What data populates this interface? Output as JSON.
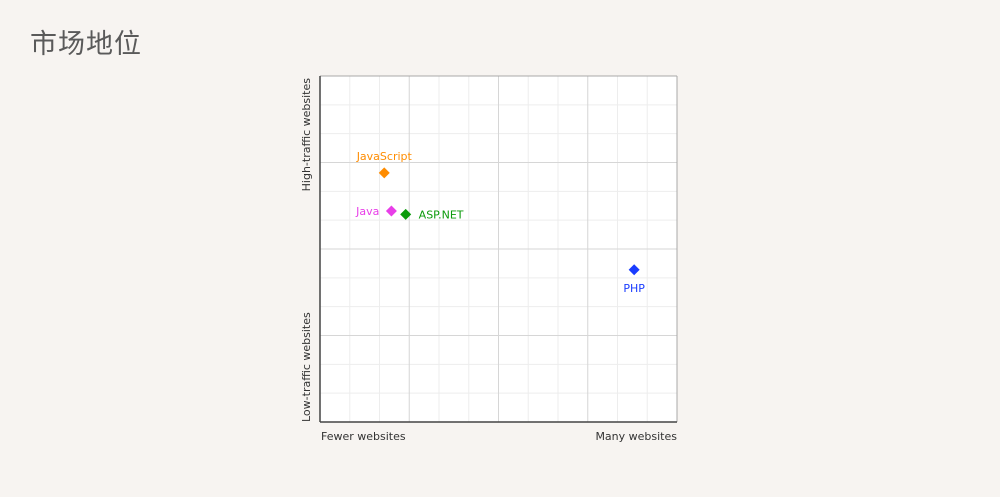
{
  "page": {
    "title": "市场地位"
  },
  "chart_data": {
    "type": "scatter",
    "title": "市场地位",
    "x_axis": {
      "min_label": "Fewer websites",
      "max_label": "Many websites",
      "range": [
        0,
        100
      ]
    },
    "y_axis": {
      "min_label": "Low-traffic websites",
      "max_label": "High-traffic websites",
      "range": [
        0,
        100
      ]
    },
    "grid": true,
    "points": [
      {
        "name": "JavaScript",
        "x": 18,
        "y": 72,
        "color": "#ff8c00",
        "label_position": "above"
      },
      {
        "name": "Java",
        "x": 20,
        "y": 61,
        "color": "#e83ee8",
        "label_position": "left"
      },
      {
        "name": "ASP.NET",
        "x": 24,
        "y": 60,
        "color": "#0a9a0a",
        "label_position": "right"
      },
      {
        "name": "PHP",
        "x": 88,
        "y": 44,
        "color": "#1a3cff",
        "label_position": "below"
      }
    ]
  }
}
